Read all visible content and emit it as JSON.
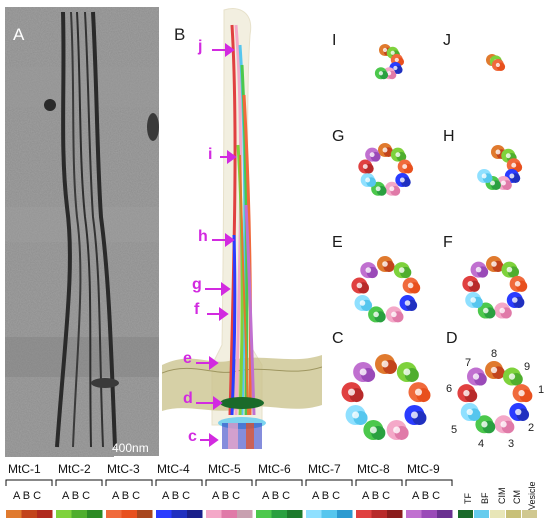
{
  "panels": {
    "A": "A",
    "B": "B",
    "C": "C",
    "D": "D",
    "E": "E",
    "F": "F",
    "G": "G",
    "H": "H",
    "I": "I",
    "J": "J"
  },
  "scale_bar": "400nm",
  "arrow_labels": [
    "j",
    "i",
    "h",
    "g",
    "f",
    "e",
    "d",
    "c"
  ],
  "doublet_numbers": [
    "1",
    "2",
    "3",
    "4",
    "5",
    "6",
    "7",
    "8",
    "9"
  ],
  "legend": {
    "groups": [
      "MtC-1",
      "MtC-2",
      "MtC-3",
      "MtC-4",
      "MtC-5",
      "MtC-6",
      "MtC-7",
      "MtC-8",
      "MtC-9"
    ],
    "subunits": "A B C",
    "extras": [
      "TF",
      "BF",
      "CIM",
      "CM",
      "Vesicle"
    ]
  },
  "colors": {
    "MtC-1": [
      "#e07a2e",
      "#c2441c",
      "#b02a1e"
    ],
    "MtC-2": [
      "#7ed23c",
      "#4fae2e",
      "#2c8a24"
    ],
    "MtC-3": [
      "#f06a3c",
      "#e8501e",
      "#a8461e"
    ],
    "MtC-4": [
      "#2a3cff",
      "#2030c0",
      "#1a1f8a"
    ],
    "MtC-5": [
      "#f4a8c8",
      "#e07aa8",
      "#c8a0b0"
    ],
    "MtC-6": [
      "#4cc84c",
      "#2aa040",
      "#1c7a2c"
    ],
    "MtC-7": [
      "#8fe0ff",
      "#56c6ee",
      "#2c9ad0"
    ],
    "MtC-8": [
      "#e04040",
      "#b82a2a",
      "#8a1c1c"
    ],
    "MtC-9": [
      "#c070d0",
      "#9a4ab8",
      "#6a3090"
    ],
    "extras": [
      "#1a6a2a",
      "#66ccee",
      "#e8e6b8",
      "#c8c078",
      "#d0c890"
    ]
  }
}
